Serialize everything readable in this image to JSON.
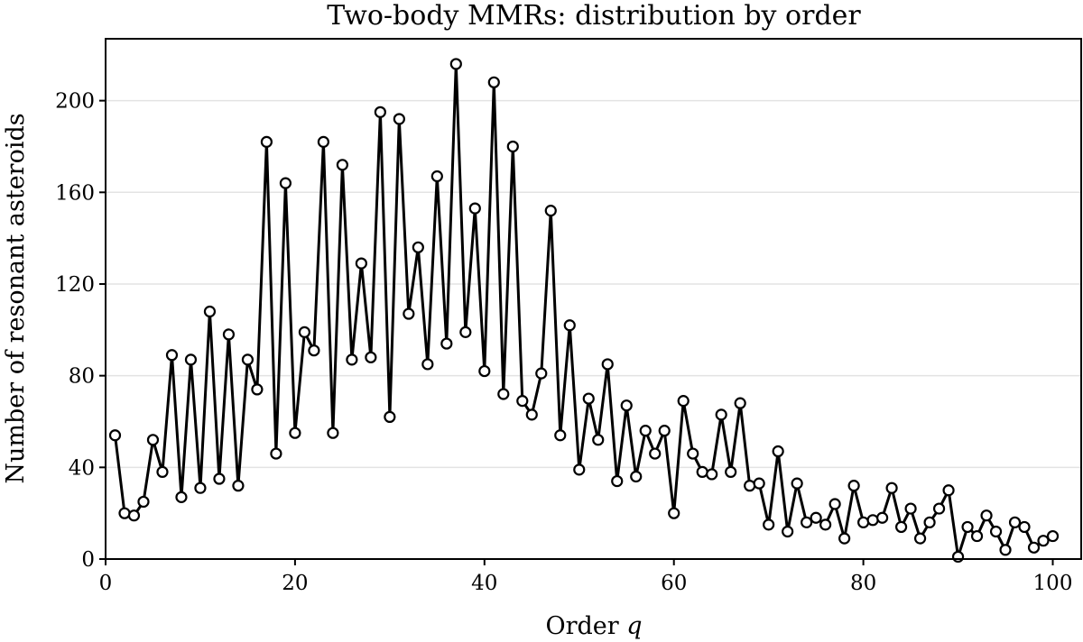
{
  "chart_data": {
    "type": "line",
    "title": "Two-body MMRs: distribution by order",
    "xlabel_text": "Order ",
    "xlabel_var": "q",
    "ylabel": "Number of resonant asteroids",
    "xlim": [
      0,
      103
    ],
    "ylim": [
      0,
      227
    ],
    "xticks": [
      0,
      20,
      40,
      60,
      80,
      100
    ],
    "yticks": [
      0,
      40,
      80,
      120,
      160,
      200
    ],
    "grid": "horizontal",
    "colors": {
      "line": "#000000",
      "marker_fill": "#ffffff",
      "grid": "#e3e3e3"
    },
    "x": [
      1,
      2,
      3,
      4,
      5,
      6,
      7,
      8,
      9,
      10,
      11,
      12,
      13,
      14,
      15,
      16,
      17,
      18,
      19,
      20,
      21,
      22,
      23,
      24,
      25,
      26,
      27,
      28,
      29,
      30,
      31,
      32,
      33,
      34,
      35,
      36,
      37,
      38,
      39,
      40,
      41,
      42,
      43,
      44,
      45,
      46,
      47,
      48,
      49,
      50,
      51,
      52,
      53,
      54,
      55,
      56,
      57,
      58,
      59,
      60,
      61,
      62,
      63,
      64,
      65,
      66,
      67,
      68,
      69,
      70,
      71,
      72,
      73,
      74,
      75,
      76,
      77,
      78,
      79,
      80,
      81,
      82,
      83,
      84,
      85,
      86,
      87,
      88,
      89,
      90,
      91,
      92,
      93,
      94,
      95,
      96,
      97,
      98,
      99,
      100
    ],
    "y": [
      54,
      20,
      19,
      25,
      52,
      38,
      89,
      27,
      87,
      31,
      108,
      35,
      98,
      32,
      87,
      74,
      182,
      46,
      164,
      55,
      99,
      91,
      182,
      55,
      172,
      87,
      129,
      88,
      195,
      62,
      192,
      107,
      136,
      85,
      167,
      94,
      216,
      99,
      153,
      82,
      208,
      72,
      180,
      69,
      63,
      81,
      152,
      54,
      102,
      39,
      70,
      52,
      85,
      34,
      67,
      36,
      56,
      46,
      56,
      20,
      69,
      46,
      38,
      37,
      63,
      38,
      68,
      32,
      33,
      15,
      47,
      12,
      33,
      16,
      18,
      15,
      24,
      9,
      32,
      16,
      17,
      18,
      31,
      14,
      22,
      9,
      16,
      22,
      30,
      1,
      14,
      10,
      19,
      12,
      4,
      16,
      14,
      5,
      8,
      10
    ]
  }
}
